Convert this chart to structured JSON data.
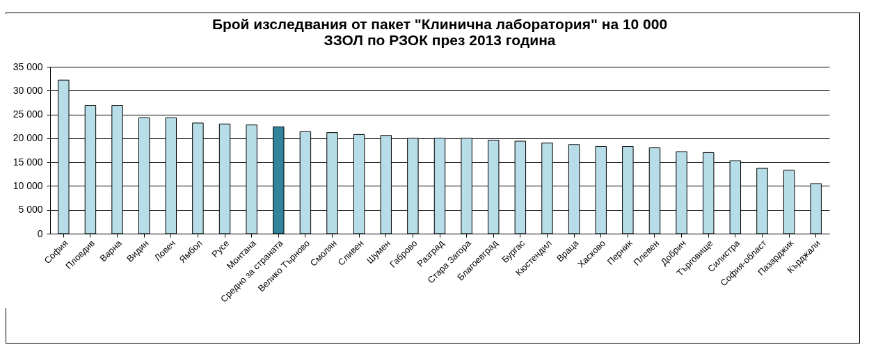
{
  "chart_data": {
    "type": "bar",
    "title": [
      "Брой изследвания от пакет \"Клинична лаборатория\" на 10 000",
      "ЗЗОЛ по РЗОК  през 2013 година"
    ],
    "categories": [
      "София",
      "Пловдив",
      "Варна",
      "Видин",
      "Ловеч",
      "Ямбол",
      "Русе",
      "Монтана",
      "Средно за страната",
      "Велико Търново",
      "Смолян",
      "Сливен",
      "Шумен",
      "Габрово",
      "Разград",
      "Стара Загора",
      "Благоевград",
      "Бургас",
      "Кюстендил",
      "Враца",
      "Хасково",
      "Перник",
      "Плевен",
      "Добрич",
      "Търговище",
      "Силистра",
      "София-област",
      "Пазарджик",
      "Кърджали"
    ],
    "values": [
      32200,
      26900,
      26900,
      24300,
      24300,
      23200,
      23000,
      22800,
      22400,
      21400,
      21200,
      20800,
      20600,
      20000,
      20000,
      20000,
      19600,
      19400,
      19000,
      18700,
      18300,
      18300,
      18000,
      17200,
      17000,
      15300,
      13700,
      13300,
      10500
    ],
    "colors": [
      "#b7dde8",
      "#b7dde8",
      "#b7dde8",
      "#b7dde8",
      "#b7dde8",
      "#b7dde8",
      "#b7dde8",
      "#b7dde8",
      "#31849b",
      "#b7dde8",
      "#b7dde8",
      "#b7dde8",
      "#b7dde8",
      "#b7dde8",
      "#b7dde8",
      "#b7dde8",
      "#b7dde8",
      "#b7dde8",
      "#b7dde8",
      "#b7dde8",
      "#b7dde8",
      "#b7dde8",
      "#b7dde8",
      "#b7dde8",
      "#b7dde8",
      "#b7dde8",
      "#b7dde8",
      "#b7dde8",
      "#b7dde8"
    ],
    "ylim": [
      0,
      35000
    ],
    "yticks": [
      {
        "value": 0,
        "label": "0"
      },
      {
        "value": 5000,
        "label": "5 000"
      },
      {
        "value": 10000,
        "label": "10 000"
      },
      {
        "value": 15000,
        "label": "15 000"
      },
      {
        "value": 20000,
        "label": "20 000"
      },
      {
        "value": 25000,
        "label": "25 000"
      },
      {
        "value": 30000,
        "label": "30 000"
      },
      {
        "value": 35000,
        "label": "35 000"
      }
    ],
    "grid": "y"
  }
}
